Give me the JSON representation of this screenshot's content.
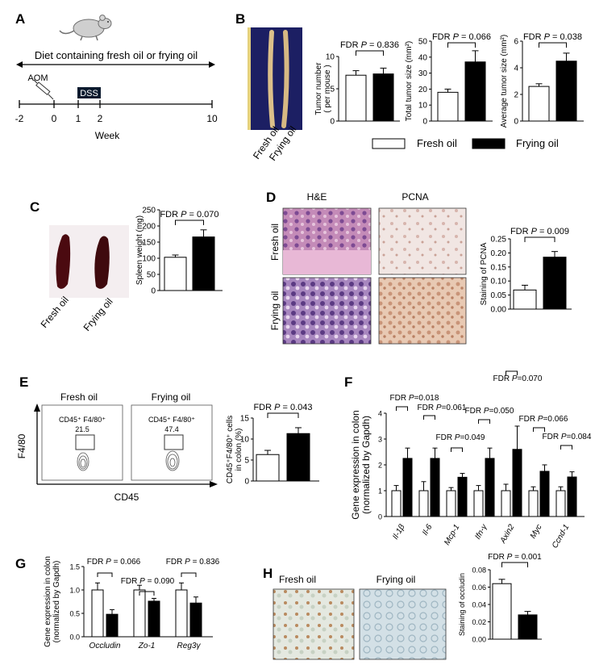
{
  "panel_labels": {
    "A": "A",
    "B": "B",
    "C": "C",
    "D": "D",
    "E": "E",
    "F": "F",
    "G": "G",
    "H": "H"
  },
  "panelA": {
    "diet_label": "Diet containing fresh oil or frying oil",
    "aom_label": "AOM",
    "dss_label": "DSS",
    "ticks": [
      "-2",
      "0",
      "1",
      "2",
      "10"
    ],
    "axis_label": "Week"
  },
  "panelB": {
    "photo_labels": [
      "Fresh oil",
      "Frying oil"
    ],
    "legend": {
      "fresh": "Fresh oil",
      "frying": "Frying oil"
    },
    "colors": {
      "fresh": "#ffffff",
      "frying": "#000000"
    }
  },
  "panelC": {
    "photo_labels": [
      "Fresh oil",
      "Frying oil"
    ]
  },
  "panelD": {
    "col_titles": [
      "H&E",
      "PCNA"
    ],
    "row_labels": [
      "Fresh oil",
      "Frying oil"
    ]
  },
  "panelE": {
    "col_titles": [
      "Fresh oil",
      "Frying oil"
    ],
    "gate_label": "CD45⁺ F4/80⁺",
    "gate_values": [
      "21.5",
      "47.4"
    ],
    "y_axis": "F4/80",
    "x_axis": "CD45"
  },
  "panelG": {
    "xtick_labels": [
      "Occludin",
      "Zo-1",
      "Reg3γ"
    ]
  },
  "panelH": {
    "col_titles": [
      "Fresh oil",
      "Frying oil"
    ]
  },
  "chart_data": [
    {
      "id": "B1",
      "type": "bar",
      "categories": [
        "Fresh oil",
        "Frying oil"
      ],
      "values": [
        7.1,
        7.3
      ],
      "errors": [
        0.7,
        0.9
      ],
      "ylabel": "Tumor number\n( per mouse )",
      "ylim": [
        0,
        10
      ],
      "yticks": [
        "0",
        "5",
        "10"
      ],
      "annotation": "FDR P = 0.836",
      "grid": false
    },
    {
      "id": "B2",
      "type": "bar",
      "categories": [
        "Fresh oil",
        "Frying oil"
      ],
      "values": [
        18,
        37
      ],
      "errors": [
        2,
        7
      ],
      "ylabel": "Total tumor size (mm²)",
      "ylim": [
        0,
        50
      ],
      "yticks": [
        "0",
        "10",
        "20",
        "30",
        "40",
        "50"
      ],
      "annotation": "FDR P = 0.066",
      "grid": false
    },
    {
      "id": "B3",
      "type": "bar",
      "categories": [
        "Fresh oil",
        "Frying oil"
      ],
      "values": [
        2.6,
        4.5
      ],
      "errors": [
        0.2,
        0.6
      ],
      "ylabel": "Average tumor size (mm²)",
      "ylim": [
        0,
        6
      ],
      "yticks": [
        "0",
        "2",
        "4",
        "6"
      ],
      "annotation": "FDR P = 0.038",
      "grid": false
    },
    {
      "id": "C",
      "type": "bar",
      "categories": [
        "Fresh oil",
        "Frying oil"
      ],
      "values": [
        103,
        166
      ],
      "errors": [
        7,
        22
      ],
      "ylabel": "Spleen weight (mg)",
      "ylim": [
        0,
        250
      ],
      "yticks": [
        "0",
        "50",
        "100",
        "150",
        "200",
        "250"
      ],
      "annotation": "FDR P = 0.070",
      "grid": false
    },
    {
      "id": "D",
      "type": "bar",
      "categories": [
        "Fresh oil",
        "Frying oil"
      ],
      "values": [
        0.068,
        0.185
      ],
      "errors": [
        0.017,
        0.02
      ],
      "ylabel": "Staining of PCNA",
      "ylim": [
        0,
        0.25
      ],
      "yticks": [
        "0.00",
        "0.05",
        "0.10",
        "0.15",
        "0.20",
        "0.25"
      ],
      "annotation": "FDR P = 0.009",
      "grid": false
    },
    {
      "id": "E",
      "type": "bar",
      "categories": [
        "Fresh oil",
        "Frying oil"
      ],
      "values": [
        6.3,
        11.3
      ],
      "errors": [
        1,
        1.4
      ],
      "ylabel": "CD45⁺F4/80⁺ cells\nin colon (%)",
      "ylim": [
        0,
        15
      ],
      "yticks": [
        "0",
        "5",
        "10",
        "15"
      ],
      "annotation": "FDR P = 0.043",
      "grid": false
    },
    {
      "id": "F",
      "type": "bar",
      "categories": [
        "Il-1β",
        "Il-6",
        "Mcp-1",
        "Ifn-γ",
        "Axin2",
        "Myc",
        "Ccnd-1"
      ],
      "series": [
        {
          "name": "Fresh oil",
          "values": [
            1,
            1,
            1,
            1,
            1,
            1,
            1
          ],
          "errors": [
            0.2,
            0.35,
            0.12,
            0.2,
            0.25,
            0.15,
            0.15
          ]
        },
        {
          "name": "Frying oil",
          "values": [
            2.25,
            2.25,
            1.52,
            2.25,
            2.6,
            1.75,
            1.53
          ]
        }
      ],
      "frying_errors": [
        0.4,
        0.4,
        0.15,
        0.4,
        0.9,
        0.25,
        0.2
      ],
      "ylabel": "Gene expression in colon\n(normalized by Gapdh)",
      "ylim": [
        0,
        4
      ],
      "yticks": [
        "0",
        "1",
        "2",
        "3",
        "4"
      ],
      "annotations": [
        "FDR P=0.018",
        "FDR P=0.061",
        "FDR P=0.049",
        "FDR P=0.050",
        "FDR P=0.070",
        "FDR P=0.066",
        "FDR P=0.084"
      ],
      "grid": false
    },
    {
      "id": "G",
      "type": "bar",
      "categories": [
        "Occludin",
        "Zo-1",
        "Reg3γ"
      ],
      "series": [
        {
          "name": "Fresh oil",
          "values": [
            1,
            1,
            1
          ],
          "errors": [
            0.15,
            0.1,
            0.15
          ]
        },
        {
          "name": "Frying oil",
          "values": [
            0.48,
            0.76,
            0.72
          ]
        }
      ],
      "frying_errors": [
        0.1,
        0.06,
        0.13
      ],
      "ylabel": "Gene expression in colon\n(normalized by Gapdh)",
      "ylim": [
        0,
        1.5
      ],
      "yticks": [
        "0.0",
        "0.5",
        "1.0",
        "1.5"
      ],
      "annotations": [
        "FDR P = 0.066",
        "FDR P = 0.090",
        "FDR P = 0.836"
      ],
      "grid": false
    },
    {
      "id": "H",
      "type": "bar",
      "categories": [
        "Fresh oil",
        "Frying oil"
      ],
      "values": [
        0.064,
        0.028
      ],
      "errors": [
        0.005,
        0.004
      ],
      "ylabel": "Staining of occludin",
      "ylim": [
        0,
        0.08
      ],
      "yticks": [
        "0.00",
        "0.02",
        "0.04",
        "0.06",
        "0.08"
      ],
      "annotation": "FDR P = 0.001",
      "grid": false
    }
  ]
}
